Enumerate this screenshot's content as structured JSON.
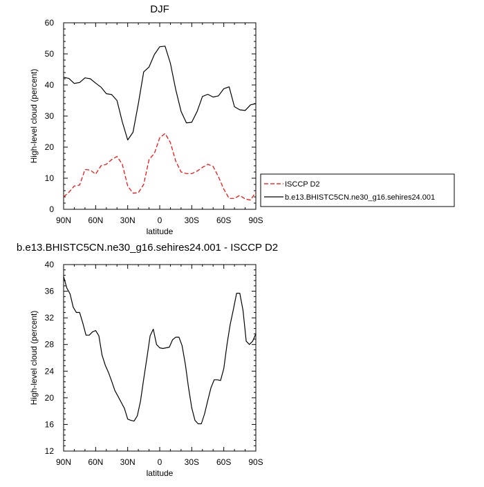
{
  "chart_data": [
    {
      "type": "line",
      "title": "DJF",
      "xlabel": "latitude",
      "ylabel": "High-level cloud (percent)",
      "xlim": [
        -90,
        90
      ],
      "ylim": [
        0,
        60
      ],
      "x_ticks": [
        -90,
        -60,
        -30,
        0,
        30,
        60,
        90
      ],
      "x_tick_labels": [
        "90N",
        "60N",
        "30N",
        "0",
        "30S",
        "60S",
        "90S"
      ],
      "y_ticks": [
        0,
        10,
        20,
        30,
        40,
        50,
        60
      ],
      "y_tick_labels": [
        "0",
        "10",
        "20",
        "30",
        "40",
        "50",
        "60"
      ],
      "legend": {
        "placement": "right",
        "entries": [
          "ISCCP D2",
          "b.e13.BHISTC5CN.ne30_g16.sehires24.001"
        ]
      },
      "series": [
        {
          "name": "b.e13.BHISTC5CN.ne30_g16.sehires24.001",
          "color": "#000000",
          "dash": "solid",
          "x": [
            -90,
            -85,
            -80,
            -75,
            -70,
            -65,
            -60,
            -55,
            -50,
            -45,
            -40,
            -35,
            -30,
            -25,
            -20,
            -15,
            -10,
            -5,
            0,
            5,
            10,
            15,
            20,
            25,
            30,
            35,
            40,
            45,
            50,
            55,
            60,
            65,
            70,
            75,
            80,
            85,
            90
          ],
          "y": [
            42.5,
            42.1,
            40.5,
            40.8,
            42.3,
            42.0,
            40.6,
            39.3,
            37.2,
            36.9,
            35.0,
            28.1,
            22.3,
            24.8,
            34.0,
            44.2,
            45.8,
            49.8,
            52.3,
            52.5,
            47.0,
            38.5,
            31.5,
            27.8,
            28.0,
            31.5,
            36.3,
            37.0,
            36.1,
            36.5,
            38.8,
            39.4,
            33.0,
            32.0,
            31.8,
            33.6,
            34.0
          ]
        },
        {
          "name": "ISCCP D2",
          "color": "#ff0000",
          "dash": "dashed",
          "x": [
            -90,
            -85,
            -80,
            -75,
            -70,
            -65,
            -60,
            -55,
            -50,
            -45,
            -40,
            -35,
            -30,
            -25,
            -20,
            -15,
            -10,
            -5,
            0,
            5,
            10,
            15,
            20,
            25,
            30,
            35,
            40,
            45,
            50,
            55,
            60,
            65,
            70,
            75,
            80,
            85,
            90
          ],
          "y": [
            4.0,
            5.5,
            7.5,
            7.8,
            12.8,
            12.6,
            11.3,
            14.0,
            14.5,
            16.0,
            17.0,
            14.5,
            7.5,
            5.2,
            5.3,
            8.0,
            16.0,
            18.0,
            23.0,
            24.4,
            21.5,
            15.5,
            12.0,
            11.5,
            11.5,
            12.3,
            13.5,
            14.5,
            13.8,
            10.5,
            6.5,
            3.5,
            3.5,
            4.5,
            3.3,
            3.0,
            5.5
          ]
        }
      ]
    },
    {
      "type": "line",
      "title": "b.e13.BHISTC5CN.ne30_g16.sehires24.001 - ISCCP D2",
      "xlabel": "latitude",
      "ylabel": "High-level cloud (percent)",
      "xlim": [
        -90,
        90
      ],
      "ylim": [
        12,
        40
      ],
      "x_ticks": [
        -90,
        -60,
        -30,
        0,
        30,
        60,
        90
      ],
      "x_tick_labels": [
        "90N",
        "60N",
        "30N",
        "0",
        "30S",
        "60S",
        "90S"
      ],
      "y_ticks": [
        12,
        16,
        20,
        24,
        28,
        32,
        36,
        40
      ],
      "y_tick_labels": [
        "12",
        "16",
        "20",
        "24",
        "28",
        "32",
        "36",
        "40"
      ],
      "series": [
        {
          "color": "#000000",
          "dash": "solid",
          "x": [
            -90,
            -87,
            -84,
            -81,
            -78,
            -75,
            -72,
            -69,
            -66,
            -63,
            -60,
            -57,
            -54,
            -51,
            -48,
            -45,
            -42,
            -39,
            -36,
            -33,
            -30,
            -27,
            -24,
            -21,
            -18,
            -15,
            -12,
            -9,
            -6,
            -3,
            0,
            3,
            6,
            9,
            12,
            15,
            18,
            21,
            24,
            27,
            30,
            33,
            36,
            39,
            42,
            45,
            48,
            51,
            54,
            57,
            60,
            63,
            66,
            69,
            72,
            75,
            78,
            81,
            84,
            87,
            90
          ],
          "y": [
            38.2,
            36.5,
            35.6,
            33.6,
            32.8,
            32.8,
            31.2,
            29.4,
            29.4,
            29.9,
            30.1,
            29.3,
            26.4,
            24.9,
            23.8,
            22.5,
            21.1,
            20.2,
            19.3,
            18.4,
            16.8,
            16.6,
            16.5,
            17.3,
            19.5,
            22.8,
            26.0,
            29.3,
            30.3,
            28.0,
            27.5,
            27.4,
            27.5,
            27.6,
            28.7,
            29.1,
            29.1,
            27.8,
            25.0,
            21.5,
            18.5,
            16.6,
            16.1,
            16.1,
            17.6,
            19.6,
            21.5,
            22.7,
            22.7,
            22.6,
            24.4,
            28.0,
            31.0,
            33.3,
            35.7,
            35.7,
            33.1,
            28.5,
            28.0,
            28.5,
            29.6
          ]
        }
      ]
    }
  ]
}
